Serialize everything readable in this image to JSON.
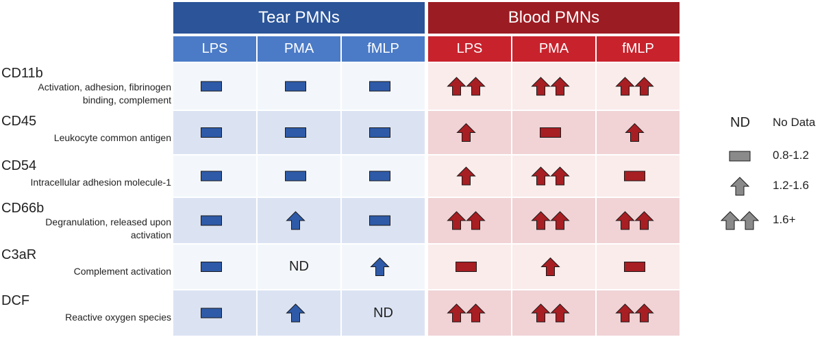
{
  "groups": [
    {
      "label": "Tear PMNs",
      "color": "#2b5499",
      "subColor": "#4b7bc7",
      "oddRow": "#f3f7fc",
      "evenRow": "#dbe3f3",
      "symbolColor": "#2e5aa8"
    },
    {
      "label": "Blood PMNs",
      "color": "#9c1c23",
      "subColor": "#c8232d",
      "oddRow": "#faeceb",
      "evenRow": "#f1d3d5",
      "symbolColor": "#a71e23"
    }
  ],
  "stimuli": [
    "LPS",
    "PMA",
    "fMLP"
  ],
  "rows": [
    {
      "marker": "CD11b",
      "description": [
        "Activation, adhesion, fibrinogen",
        "binding, complement"
      ],
      "values": [
        "bar",
        "bar",
        "bar",
        "double-arrow",
        "double-arrow",
        "double-arrow"
      ]
    },
    {
      "marker": "CD45",
      "description": [
        "Leukocyte common antigen"
      ],
      "values": [
        "bar",
        "bar",
        "bar",
        "arrow",
        "bar",
        "arrow"
      ]
    },
    {
      "marker": "CD54",
      "description": [
        "Intracellular adhesion molecule-1"
      ],
      "values": [
        "bar",
        "bar",
        "bar",
        "arrow",
        "double-arrow",
        "bar"
      ]
    },
    {
      "marker": "CD66b",
      "description": [
        "Degranulation, released upon",
        "activation"
      ],
      "values": [
        "bar",
        "arrow",
        "bar",
        "double-arrow",
        "double-arrow",
        "double-arrow"
      ]
    },
    {
      "marker": "C3aR",
      "description": [
        "Complement activation"
      ],
      "values": [
        "bar",
        "ND",
        "arrow",
        "bar",
        "arrow",
        "bar"
      ]
    },
    {
      "marker": "DCF",
      "description": [
        "Reactive oxygen species"
      ],
      "values": [
        "bar",
        "arrow",
        "ND",
        "double-arrow",
        "double-arrow",
        "double-arrow"
      ]
    }
  ],
  "legend": {
    "color": "#8a8a8a",
    "items": [
      {
        "symbol": "ND",
        "label": "No Data"
      },
      {
        "symbol": "bar",
        "label": "0.8-1.2"
      },
      {
        "symbol": "arrow",
        "label": "1.2-1.6"
      },
      {
        "symbol": "double-arrow",
        "label": "1.6+"
      }
    ]
  }
}
